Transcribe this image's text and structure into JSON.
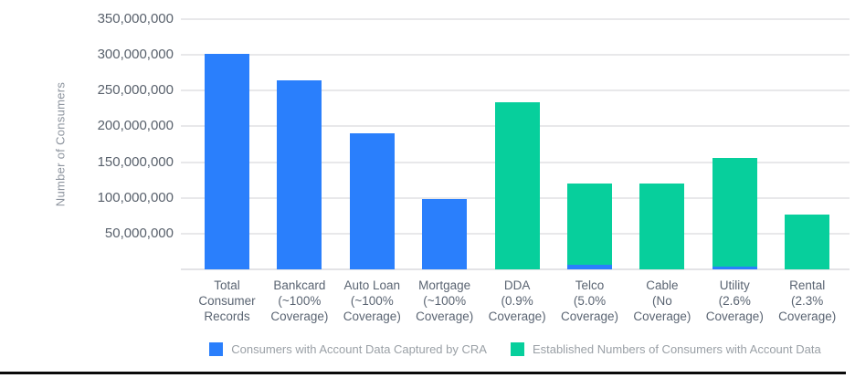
{
  "chart_data": {
    "type": "bar",
    "stacked": true,
    "title": "",
    "xlabel": "",
    "ylabel": "Number of Consumers",
    "ylim": [
      0,
      350000000
    ],
    "grid": true,
    "legend_position": "bottom",
    "categories": [
      "Total Consumer Records",
      "Bankcard (~100% Coverage)",
      "Auto Loan (~100% Coverage)",
      "Mortgage (~100% Coverage)",
      "DDA (0.9% Coverage)",
      "Telco (5.0% Coverage)",
      "Cable (No Coverage)",
      "Utility (2.6% Coverage)",
      "Rental (2.3% Coverage)"
    ],
    "category_label_lines": [
      [
        "Total",
        "Consumer",
        "Records"
      ],
      [
        "Bankcard",
        "(~100%",
        "Coverage)"
      ],
      [
        "Auto Loan",
        "(~100%",
        "Coverage)"
      ],
      [
        "Mortgage",
        "(~100%",
        "Coverage)"
      ],
      [
        "DDA",
        "(0.9%",
        "Coverage)"
      ],
      [
        "Telco",
        "(5.0%",
        "Coverage)"
      ],
      [
        "Cable",
        "(No",
        "Coverage)"
      ],
      [
        "Utility",
        "(2.6%",
        "Coverage)"
      ],
      [
        "Rental",
        "(2.3%",
        "Coverage)"
      ]
    ],
    "series": [
      {
        "name": "Consumers with Account Data Captured by CRA",
        "color": "#2a7ffc",
        "values": [
          301000000,
          265000000,
          190000000,
          98000000,
          0,
          6000000,
          0,
          4000000,
          0
        ]
      },
      {
        "name": "Established Numbers of Consumers with Account Data",
        "color": "#07cf9c",
        "values": [
          0,
          0,
          0,
          0,
          234000000,
          114000000,
          120000000,
          152000000,
          77000000
        ]
      }
    ],
    "bar_totals": [
      301000000,
      265000000,
      190000000,
      98000000,
      234000000,
      120000000,
      120000000,
      156000000,
      77000000
    ],
    "yticks": [
      {
        "value": 350000000,
        "label": "350,000,000"
      },
      {
        "value": 300000000,
        "label": "300,000,000"
      },
      {
        "value": 250000000,
        "label": "250,000,000"
      },
      {
        "value": 200000000,
        "label": "200,000,000"
      },
      {
        "value": 150000000,
        "label": "150,000,000"
      },
      {
        "value": 100000000,
        "label": "100,000,000"
      },
      {
        "value": 50000000,
        "label": "50,000,000"
      },
      {
        "value": 0,
        "label": ""
      }
    ]
  },
  "colors": {
    "captured_blue": "#2a7ffc",
    "established_green": "#07cf9c",
    "gridline": "#e8e8ea",
    "tick_text": "#59616c",
    "legend_text": "#9aa0a6",
    "bottom_border": "#0a0a0a"
  }
}
